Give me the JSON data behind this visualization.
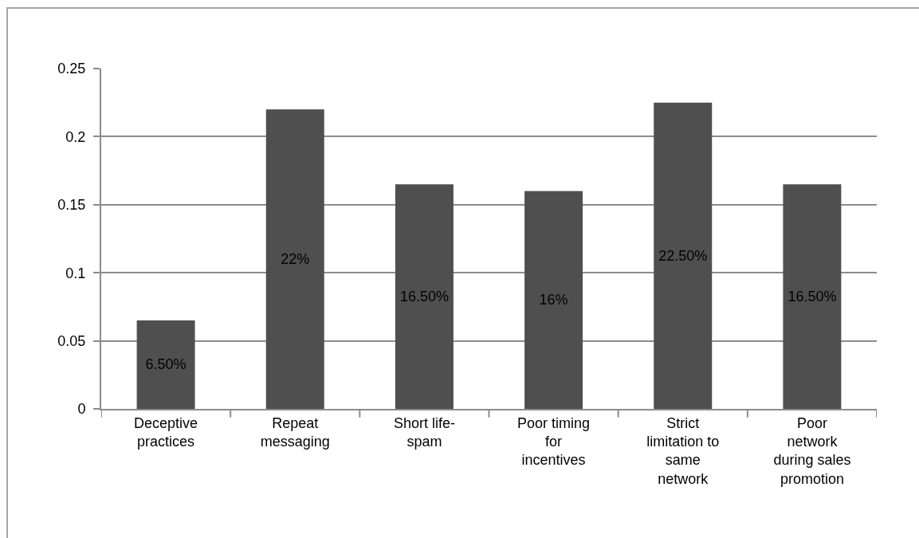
{
  "chart_data": {
    "type": "bar",
    "categories": [
      "Deceptive practices",
      "Repeat messaging",
      "Short life-spam",
      "Poor timing for incentives",
      "Strict limitation to same network",
      "Poor network during sales promotion"
    ],
    "values": [
      0.065,
      0.22,
      0.165,
      0.16,
      0.225,
      0.165
    ],
    "value_labels": [
      "6.50%",
      "22%",
      "16.50%",
      "16%",
      "22.50%",
      "16.50%"
    ],
    "color": "#4f4f4f",
    "ylim": [
      0,
      0.25
    ],
    "yticks": [
      0,
      0.05,
      0.1,
      0.15,
      0.2,
      0.25
    ],
    "grid": "y"
  }
}
